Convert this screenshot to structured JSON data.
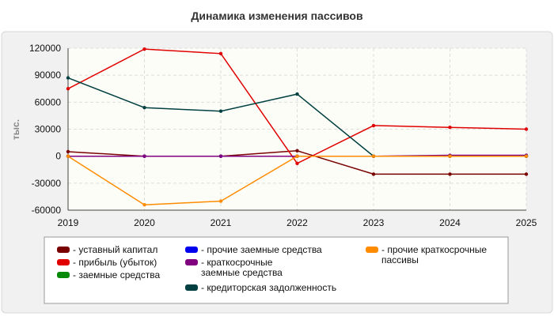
{
  "chart_data": {
    "type": "line",
    "title": "Динамика изменения пассивов",
    "ylabel": "тыс.",
    "xlabel": "",
    "categories": [
      "2019",
      "2020",
      "2021",
      "2022",
      "2023",
      "2024",
      "2025"
    ],
    "ylim": [
      -60000,
      120000
    ],
    "yticks": [
      "120000",
      "90000",
      "60000",
      "30000",
      "0",
      "-30000",
      "-60000"
    ],
    "ytick_values": [
      120000,
      90000,
      60000,
      30000,
      0,
      -30000,
      -60000
    ],
    "grid": true,
    "legend_position": "bottom",
    "series": [
      {
        "name": "- уставный капитал",
        "color": "#7a0000",
        "values": [
          5000,
          0,
          0,
          6000,
          -20000,
          -20000,
          -20000
        ]
      },
      {
        "name": "- прибыль (убыток)",
        "color": "#e00000",
        "values": [
          75000,
          119000,
          114000,
          -8000,
          34000,
          32000,
          30000
        ]
      },
      {
        "name": "- заемные средства",
        "color": "#0a8a0a",
        "values": [
          0,
          0,
          0,
          0,
          0,
          0,
          0
        ]
      },
      {
        "name": "- прочие заемные средства",
        "color": "#0000ee",
        "values": [
          0,
          0,
          0,
          0,
          0,
          0,
          0
        ]
      },
      {
        "name": "- краткосрочные заемные средства",
        "color": "#800080",
        "values": [
          0,
          0,
          0,
          0,
          0,
          1000,
          1000
        ]
      },
      {
        "name": "- кредиторская задолженность",
        "color": "#004040",
        "values": [
          87000,
          54000,
          50000,
          69000,
          0,
          0,
          0
        ]
      },
      {
        "name": "- прочие краткосрочные пассивы",
        "color": "#ff8c00",
        "values": [
          0,
          -54000,
          -50000,
          0,
          0,
          0,
          0
        ]
      }
    ]
  }
}
